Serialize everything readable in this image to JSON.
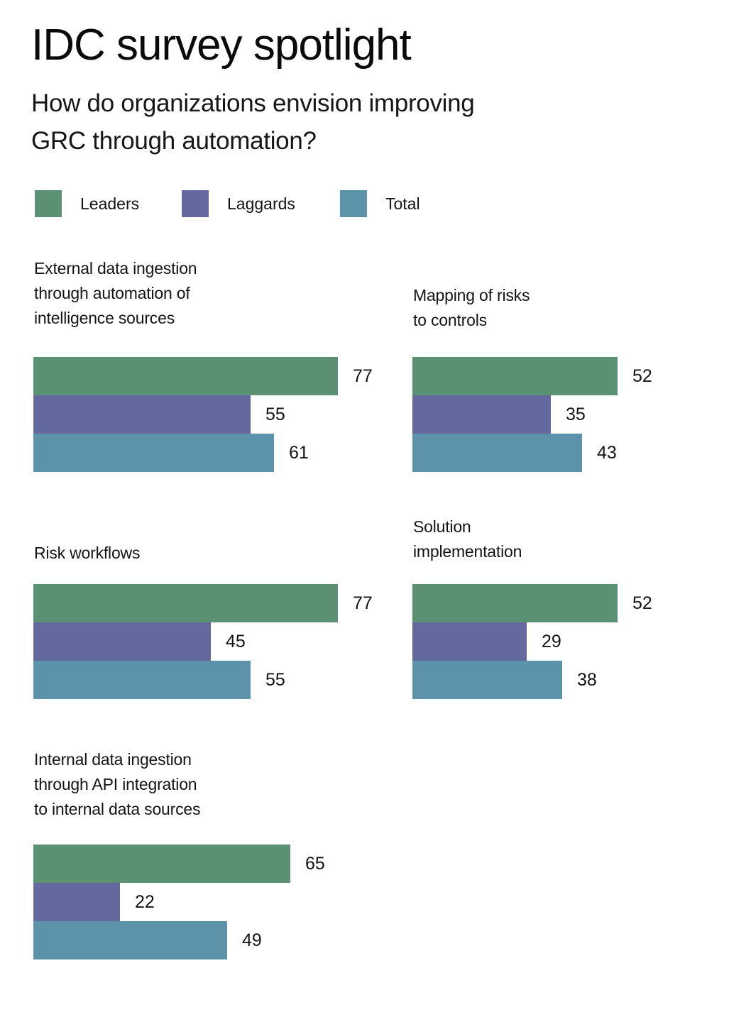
{
  "page": {
    "title": "IDC survey spotlight",
    "subtitle_lines": [
      "How do organizations envision improving",
      "GRC through automation?"
    ],
    "background": "#ffffff",
    "text_color": "#141414"
  },
  "legend": {
    "items": [
      {
        "label": "Leaders",
        "color": "#5A9173"
      },
      {
        "label": "Laggards",
        "color": "#63699E"
      },
      {
        "label": "Total",
        "color": "#5C92AA"
      }
    ]
  },
  "chart_data": {
    "type": "bar",
    "orientation": "horizontal",
    "title": "IDC survey spotlight",
    "subtitle": "How do organizations envision improving GRC through automation?",
    "series": [
      "Leaders",
      "Laggards",
      "Total"
    ],
    "series_colors": [
      "#5A9173",
      "#63699E",
      "#5C92AA"
    ],
    "xlim": [
      0,
      100
    ],
    "grid": false,
    "legend_position": "top",
    "value_labels": true,
    "groups": [
      {
        "category": "External data ingestion through automation of intelligence sources",
        "label_lines": [
          "External data ingestion",
          "through automation of",
          "intelligence sources"
        ],
        "values": [
          77,
          55,
          61
        ]
      },
      {
        "category": "Mapping of risks to controls",
        "label_lines": [
          "Mapping of risks",
          "to controls"
        ],
        "values": [
          52,
          35,
          43
        ]
      },
      {
        "category": "Risk workflows",
        "label_lines": [
          "Risk workflows"
        ],
        "values": [
          77,
          45,
          55
        ]
      },
      {
        "category": "Solution implementation",
        "label_lines": [
          "Solution",
          "implementation"
        ],
        "values": [
          52,
          29,
          38
        ]
      },
      {
        "category": "Internal data ingestion through API integration to internal data sources",
        "label_lines": [
          "Internal data ingestion",
          "through API integration",
          "to internal data sources"
        ],
        "values": [
          65,
          22,
          49
        ]
      }
    ]
  }
}
